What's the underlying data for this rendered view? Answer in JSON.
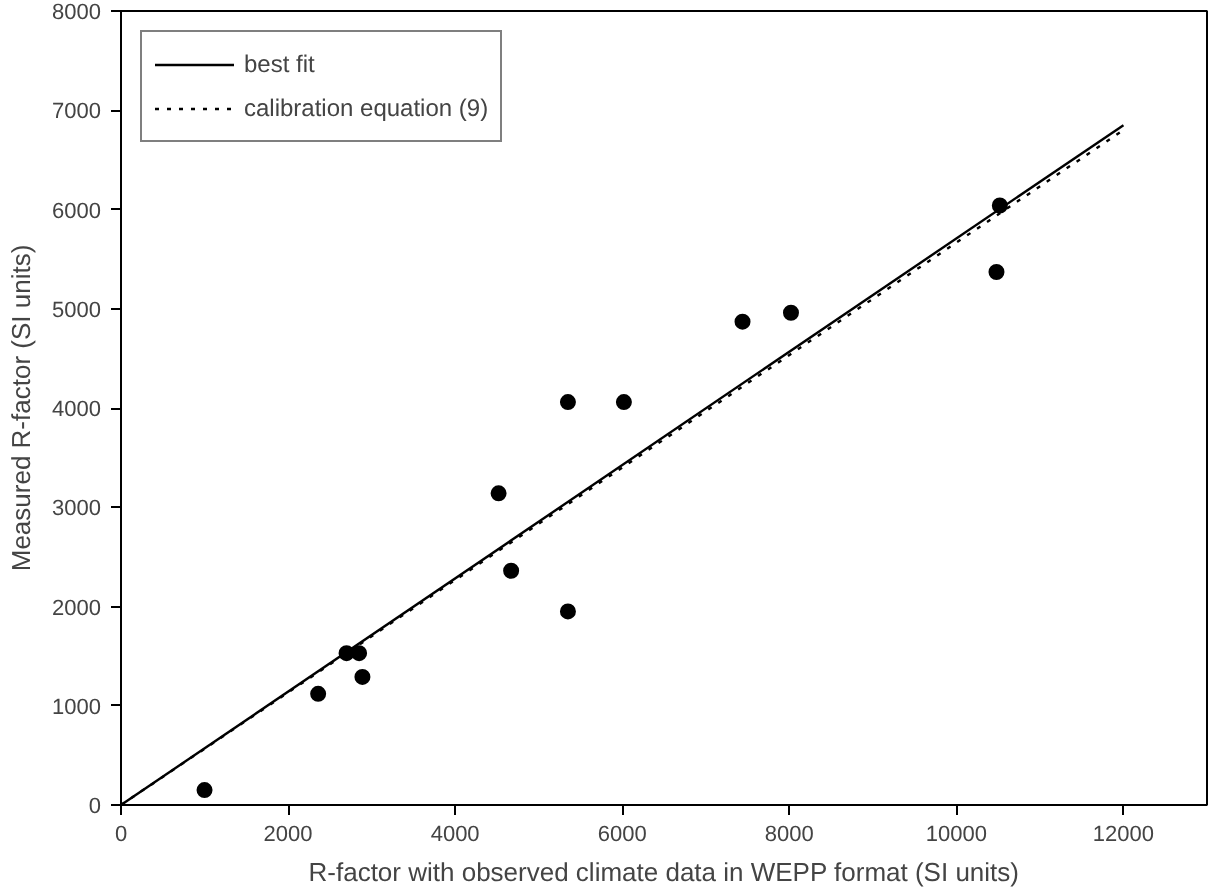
{
  "chart_data": {
    "type": "scatter",
    "xlabel": "R-factor with observed climate data in WEPP format (SI units)",
    "ylabel": "Measured R-factor (SI units)",
    "xlim": [
      0,
      13000
    ],
    "ylim": [
      0,
      8000
    ],
    "xticks": [
      0,
      2000,
      4000,
      6000,
      8000,
      10000,
      12000
    ],
    "yticks": [
      0,
      1000,
      2000,
      3000,
      4000,
      5000,
      6000,
      7000,
      8000
    ],
    "grid": false,
    "legend": "top left",
    "series": [
      {
        "color": "#000000",
        "marker": "circle",
        "x": [
          1000,
          2360,
          2700,
          2850,
          2890,
          4520,
          4670,
          5350,
          5350,
          6020,
          7440,
          8020,
          10520,
          10480
        ],
        "values": [
          150,
          1120,
          1530,
          1530,
          1290,
          3140,
          2360,
          4060,
          1950,
          4060,
          4870,
          4960,
          6040,
          5370
        ]
      },
      {
        "type": "line",
        "name": "best fit",
        "color": "#000000",
        "line_style": "solid",
        "x": [
          0,
          12000
        ],
        "values": [
          0,
          6850
        ]
      },
      {
        "type": "line",
        "name": "calibration equation (9)",
        "color": "#000000",
        "line_style": "dotted",
        "x": [
          0,
          12000
        ],
        "values": [
          0,
          6800
        ]
      }
    ]
  }
}
